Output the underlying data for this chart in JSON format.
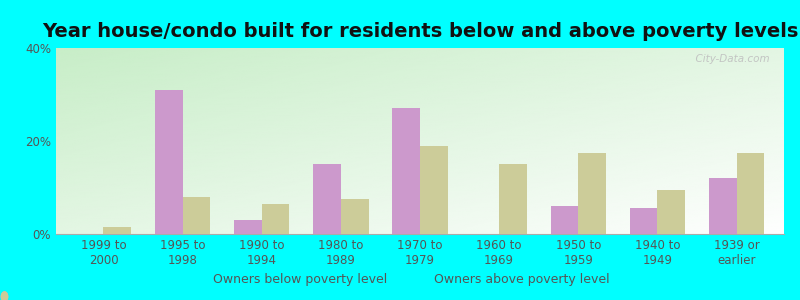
{
  "title": "Year house/condo built for residents below and above poverty levels",
  "categories": [
    "1999 to\n2000",
    "1995 to\n1998",
    "1990 to\n1994",
    "1980 to\n1989",
    "1970 to\n1979",
    "1960 to\n1969",
    "1950 to\n1959",
    "1940 to\n1949",
    "1939 or\nearlier"
  ],
  "below_poverty": [
    0.0,
    31.0,
    3.0,
    15.0,
    27.0,
    0.0,
    6.0,
    5.5,
    12.0
  ],
  "above_poverty": [
    1.5,
    8.0,
    6.5,
    7.5,
    19.0,
    15.0,
    17.5,
    9.5,
    17.5
  ],
  "below_color": "#cc99cc",
  "above_color": "#cccc99",
  "ylim": [
    0,
    40
  ],
  "yticks": [
    0,
    20,
    40
  ],
  "ytick_labels": [
    "0%",
    "20%",
    "40%"
  ],
  "background_color": "#00ffff",
  "plot_bg_topleft": "#c8eec8",
  "plot_bg_bottomright": "#fffff8",
  "bar_width": 0.35,
  "legend_below_label": "Owners below poverty level",
  "legend_above_label": "Owners above poverty level",
  "watermark": "  City-Data.com",
  "title_fontsize": 14,
  "axis_fontsize": 8.5,
  "tick_color": "#555555"
}
